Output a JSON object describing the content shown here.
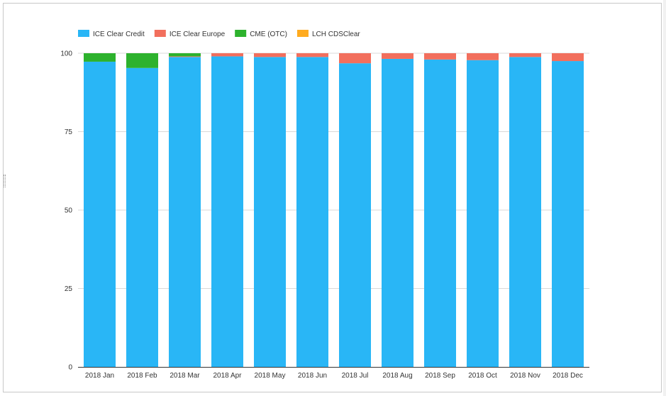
{
  "chart_data": {
    "type": "bar",
    "stacked": true,
    "title": "",
    "xlabel": "",
    "ylabel": "",
    "ylim": [
      0,
      100
    ],
    "yticks": [
      0,
      25,
      50,
      75,
      100
    ],
    "grid": true,
    "legend_position": "top-left",
    "categories": [
      "2018 Jan",
      "2018 Feb",
      "2018 Mar",
      "2018 Apr",
      "2018 May",
      "2018 Jun",
      "2018 Jul",
      "2018 Aug",
      "2018 Sep",
      "2018 Oct",
      "2018 Nov",
      "2018 Dec"
    ],
    "series": [
      {
        "name": "ICE Clear Credit",
        "color": "#29b6f6",
        "values": [
          97.3,
          95.3,
          98.8,
          99.0,
          98.8,
          98.8,
          96.8,
          98.2,
          98.0,
          97.8,
          98.8,
          97.5
        ]
      },
      {
        "name": "ICE Clear Europe",
        "color": "#f26f5d",
        "values": [
          0.0,
          0.0,
          0.2,
          1.0,
          1.2,
          1.2,
          3.2,
          1.8,
          2.0,
          2.2,
          1.2,
          2.5
        ]
      },
      {
        "name": "CME (OTC)",
        "color": "#2db22d",
        "values": [
          2.7,
          4.7,
          1.0,
          0.0,
          0.0,
          0.0,
          0.0,
          0.0,
          0.0,
          0.0,
          0.0,
          0.0
        ]
      },
      {
        "name": "LCH CDSClear",
        "color": "#ffab1f",
        "values": [
          0,
          0,
          0,
          0,
          0,
          0,
          0,
          0,
          0,
          0,
          0,
          0
        ]
      }
    ]
  }
}
